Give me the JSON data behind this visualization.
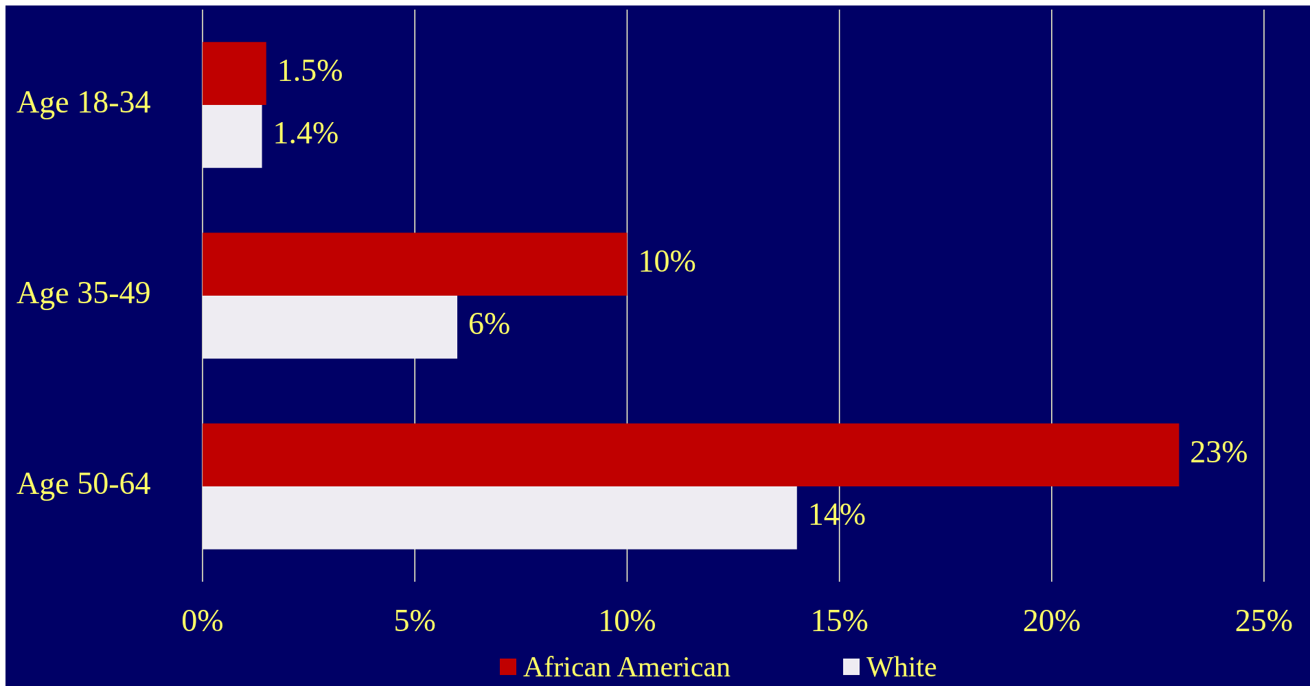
{
  "chart_data": {
    "type": "bar",
    "orientation": "horizontal",
    "categories": [
      "Age 18-34",
      "Age 35-49",
      "Age 50-64"
    ],
    "series": [
      {
        "name": "African American",
        "color": "#c00000",
        "values": [
          1.5,
          10,
          23
        ],
        "value_labels": [
          "1.5%",
          "10%",
          "23%"
        ]
      },
      {
        "name": "White",
        "color": "#eeecf2",
        "values": [
          1.4,
          6,
          14
        ],
        "value_labels": [
          "1.4%",
          "6%",
          "14%"
        ]
      }
    ],
    "xlim": [
      0,
      25
    ],
    "xticks": [
      {
        "value": 0,
        "label": "0%"
      },
      {
        "value": 5,
        "label": "5%"
      },
      {
        "value": 10,
        "label": "10%"
      },
      {
        "value": 15,
        "label": "15%"
      },
      {
        "value": 20,
        "label": "20%"
      },
      {
        "value": 25,
        "label": "25%"
      }
    ],
    "grid": "x",
    "legend": "bottom"
  }
}
